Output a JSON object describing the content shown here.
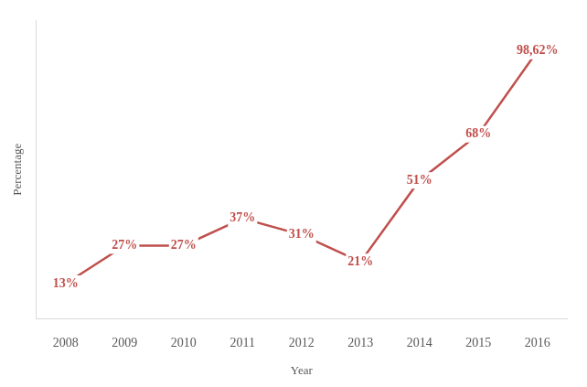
{
  "chart_data": {
    "type": "line",
    "x_label": "Year",
    "y_label": "Percentage",
    "categories": [
      "2008",
      "2009",
      "2010",
      "2011",
      "2012",
      "2013",
      "2014",
      "2015",
      "2016"
    ],
    "values": [
      13,
      27,
      27,
      37,
      31,
      21,
      51,
      68,
      98.62
    ],
    "value_labels": [
      "13%",
      "27%",
      "27%",
      "37%",
      "31%",
      "21%",
      "51%",
      "68%",
      "98,62%"
    ],
    "color": "#c0504d",
    "ylim": [
      0,
      110
    ],
    "grid": false,
    "data_labels": true,
    "tick_labels": "x"
  }
}
